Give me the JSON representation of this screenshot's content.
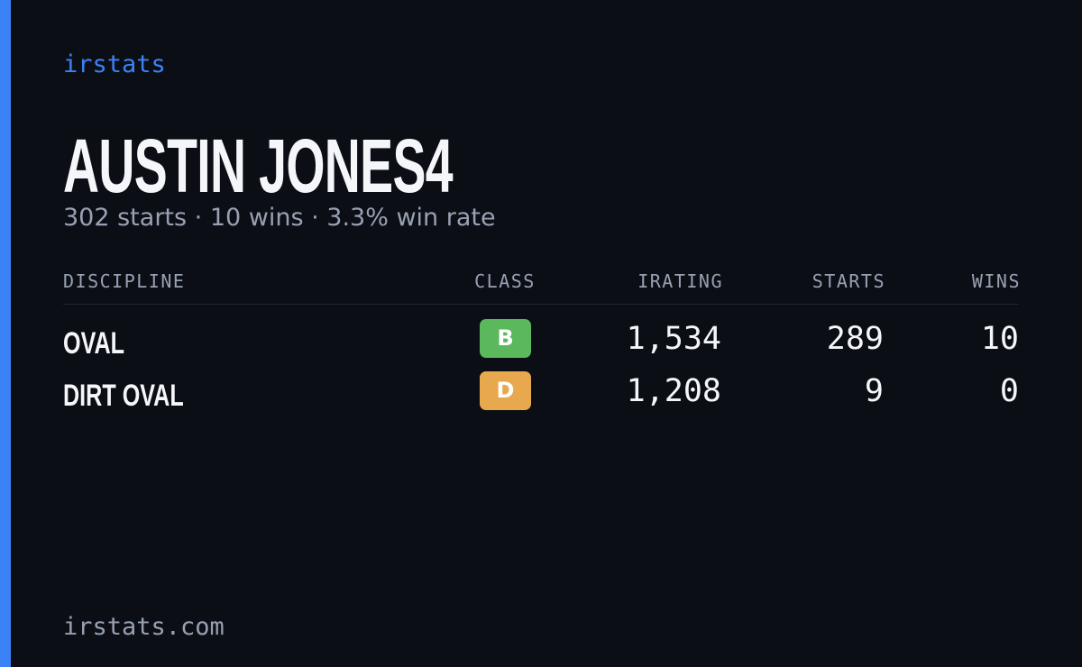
{
  "brand": "irstats",
  "driver": {
    "name": "AUSTIN JONES4",
    "summary": "302 starts · 10 wins · 3.3% win rate"
  },
  "table": {
    "headers": [
      "DISCIPLINE",
      "CLASS",
      "IRATING",
      "STARTS",
      "WINS"
    ],
    "rows": [
      [
        "OVAL",
        "B",
        "1,534",
        "289",
        "10"
      ],
      [
        "DIRT OVAL",
        "D",
        "1,208",
        "9",
        "0"
      ]
    ]
  },
  "footer": "irstats.com"
}
